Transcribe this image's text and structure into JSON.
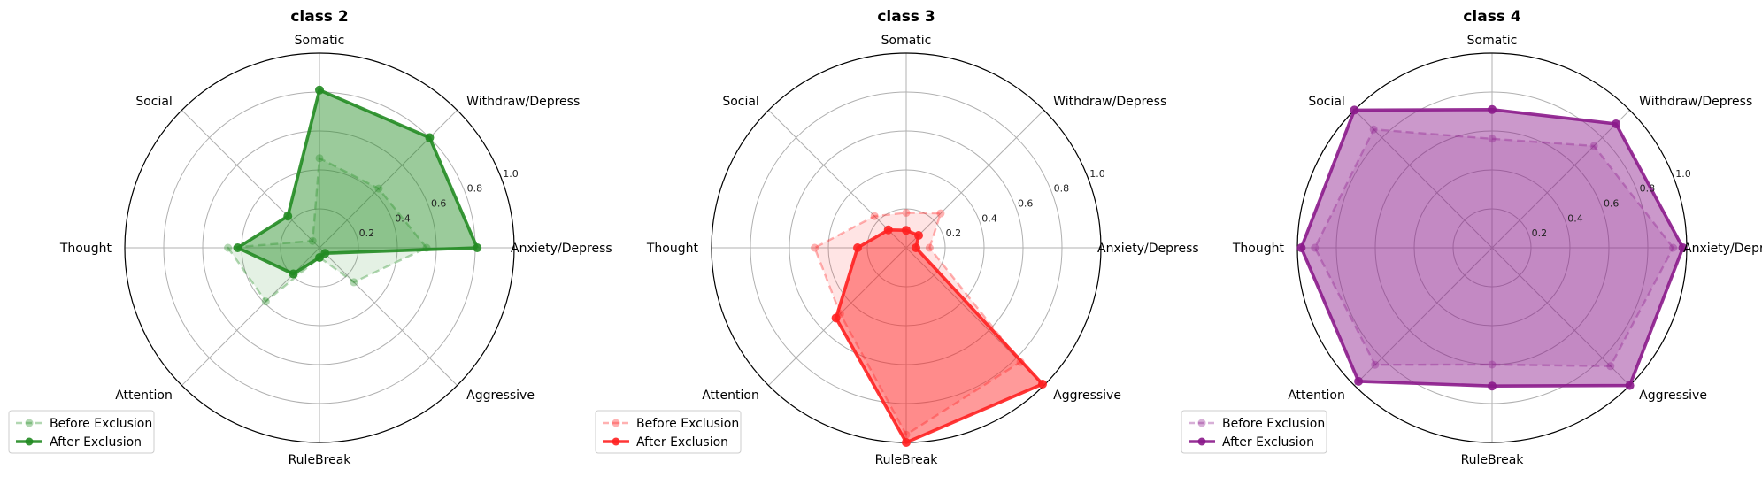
{
  "chart_data": [
    {
      "type": "radar",
      "title": "class 2",
      "categories": [
        "Anxiety/Depress",
        "Withdraw/Depress",
        "Somatic",
        "Social",
        "Thought",
        "Attention",
        "RuleBreak",
        "Aggressive"
      ],
      "rlim": [
        0,
        1.0
      ],
      "rticks": [
        "0.2",
        "0.4",
        "0.6",
        "0.8",
        "1.0"
      ],
      "rtick_values": [
        0.2,
        0.4,
        0.6,
        0.8,
        1.0
      ],
      "grid": true,
      "legend_position": "bottom-left",
      "color": "#228b22",
      "series": [
        {
          "name": "Before Exclusion",
          "values": [
            0.55,
            0.43,
            0.46,
            0.05,
            0.47,
            0.39,
            0.05,
            0.25
          ]
        },
        {
          "name": "After Exclusion",
          "values": [
            0.81,
            0.8,
            0.81,
            0.23,
            0.42,
            0.19,
            0.05,
            0.04
          ]
        }
      ]
    },
    {
      "type": "radar",
      "title": "class 3",
      "categories": [
        "Anxiety/Depress",
        "Withdraw/Depress",
        "Somatic",
        "Social",
        "Thought",
        "Attention",
        "RuleBreak",
        "Aggressive"
      ],
      "rlim": [
        0,
        1.0
      ],
      "rticks": [
        "0.2",
        "0.4",
        "0.6",
        "0.8",
        "1.0"
      ],
      "rtick_values": [
        0.2,
        0.4,
        0.6,
        0.8,
        1.0
      ],
      "grid": true,
      "legend_position": "bottom-left",
      "color": "#ff2020",
      "series": [
        {
          "name": "Before Exclusion",
          "values": [
            0.12,
            0.25,
            0.18,
            0.23,
            0.47,
            0.48,
            0.96,
            0.83
          ]
        },
        {
          "name": "After Exclusion",
          "values": [
            0.05,
            0.09,
            0.09,
            0.13,
            0.25,
            0.51,
            1.0,
            0.99
          ]
        }
      ]
    },
    {
      "type": "radar",
      "title": "class 4",
      "categories": [
        "Anxiety/Depress",
        "Withdraw/Depress",
        "Somatic",
        "Social",
        "Thought",
        "Attention",
        "RuleBreak",
        "Aggressive"
      ],
      "rlim": [
        0,
        1.0
      ],
      "rticks": [
        "0.2",
        "0.4",
        "0.6",
        "0.8",
        "1.0"
      ],
      "rtick_values": [
        0.2,
        0.4,
        0.6,
        0.8,
        1.0
      ],
      "grid": true,
      "legend_position": "bottom-left",
      "color": "#8b1a8b",
      "series": [
        {
          "name": "Before Exclusion",
          "values": [
            0.93,
            0.74,
            0.56,
            0.86,
            0.91,
            0.85,
            0.6,
            0.86
          ]
        },
        {
          "name": "After Exclusion",
          "values": [
            0.98,
            0.9,
            0.71,
            1.0,
            0.98,
            0.97,
            0.71,
            1.0
          ]
        }
      ]
    }
  ]
}
